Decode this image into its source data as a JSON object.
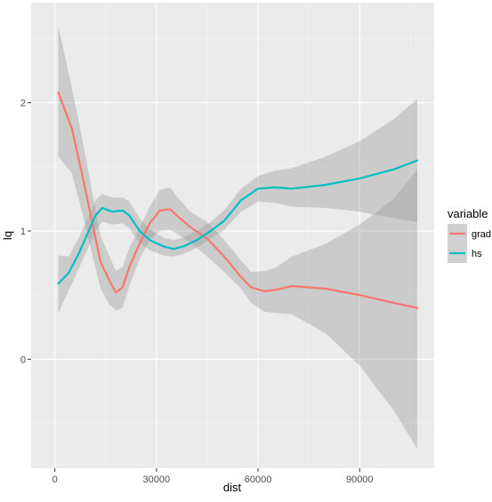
{
  "chart_data": {
    "type": "line",
    "xlabel": "dist",
    "ylabel": "lq",
    "xlim": [
      -7000,
      112000
    ],
    "ylim": [
      -0.85,
      2.78
    ],
    "xticks": [
      0,
      30000,
      60000,
      90000
    ],
    "xtick_labels": [
      "0",
      "30000",
      "60000",
      "90000"
    ],
    "yticks": [
      0,
      1,
      2
    ],
    "ytick_labels": [
      "0",
      "1",
      "2"
    ],
    "x_minor": [
      15000,
      45000,
      75000,
      105000
    ],
    "y_minor": [
      -0.5,
      0.5,
      1.5,
      2.5
    ],
    "grid": true,
    "legend": {
      "title": "variable",
      "position": "right",
      "entries": [
        "grad",
        "hs"
      ]
    },
    "series": [
      {
        "name": "grad",
        "color": "#F8766D",
        "x": [
          1000,
          5000,
          8000,
          11000,
          13500,
          16000,
          18000,
          20000,
          22000,
          25000,
          28000,
          31000,
          34000,
          36000,
          40000,
          45000,
          50000,
          55000,
          58000,
          62000,
          65000,
          70000,
          80000,
          90000,
          100000,
          107000
        ],
        "y": [
          2.08,
          1.8,
          1.45,
          1.07,
          0.76,
          0.62,
          0.52,
          0.56,
          0.72,
          0.9,
          1.06,
          1.16,
          1.17,
          1.12,
          1.03,
          0.94,
          0.8,
          0.64,
          0.56,
          0.53,
          0.54,
          0.57,
          0.55,
          0.5,
          0.44,
          0.4
        ],
        "lower": [
          1.58,
          1.45,
          1.15,
          0.82,
          0.55,
          0.43,
          0.38,
          0.4,
          0.57,
          0.78,
          0.93,
          1.0,
          1.01,
          0.98,
          0.91,
          0.8,
          0.68,
          0.55,
          0.44,
          0.37,
          0.36,
          0.35,
          0.2,
          -0.05,
          -0.4,
          -0.7
        ],
        "upper": [
          2.6,
          2.12,
          1.73,
          1.31,
          0.96,
          0.81,
          0.69,
          0.72,
          0.87,
          1.02,
          1.19,
          1.32,
          1.34,
          1.27,
          1.15,
          1.07,
          0.93,
          0.77,
          0.68,
          0.69,
          0.71,
          0.8,
          0.9,
          1.05,
          1.25,
          1.48
        ]
      },
      {
        "name": "hs",
        "color": "#00BFC4",
        "x": [
          1000,
          4000,
          7000,
          10000,
          12000,
          14000,
          17000,
          20000,
          22000,
          25000,
          28000,
          32000,
          35000,
          38000,
          42000,
          46000,
          50000,
          55000,
          60000,
          65000,
          70000,
          80000,
          90000,
          100000,
          107000
        ],
        "y": [
          0.59,
          0.67,
          0.82,
          1.0,
          1.12,
          1.18,
          1.15,
          1.16,
          1.12,
          1.0,
          0.93,
          0.88,
          0.86,
          0.88,
          0.93,
          1.0,
          1.08,
          1.24,
          1.33,
          1.34,
          1.33,
          1.36,
          1.41,
          1.48,
          1.55
        ],
        "lower": [
          0.36,
          0.53,
          0.7,
          0.88,
          1.0,
          1.07,
          1.05,
          1.06,
          1.02,
          0.91,
          0.85,
          0.81,
          0.8,
          0.82,
          0.87,
          0.94,
          1.01,
          1.15,
          1.23,
          1.22,
          1.19,
          1.18,
          1.15,
          1.1,
          1.07
        ],
        "upper": [
          0.81,
          0.8,
          0.94,
          1.12,
          1.24,
          1.29,
          1.26,
          1.26,
          1.23,
          1.1,
          1.01,
          0.95,
          0.93,
          0.95,
          1.0,
          1.07,
          1.16,
          1.33,
          1.43,
          1.47,
          1.49,
          1.58,
          1.7,
          1.87,
          2.03
        ]
      }
    ]
  }
}
